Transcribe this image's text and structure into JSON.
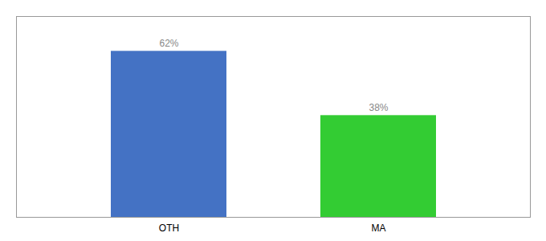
{
  "chart_data": {
    "type": "bar",
    "categories": [
      "OTH",
      "MA"
    ],
    "values": [
      62,
      38
    ],
    "value_labels": [
      "62%",
      "38%"
    ],
    "colors": [
      "#4472c4",
      "#33cc33"
    ],
    "ylim": [
      0,
      75
    ],
    "yticks": [],
    "data_labels": true,
    "tick_labels": "x",
    "grid": false
  }
}
